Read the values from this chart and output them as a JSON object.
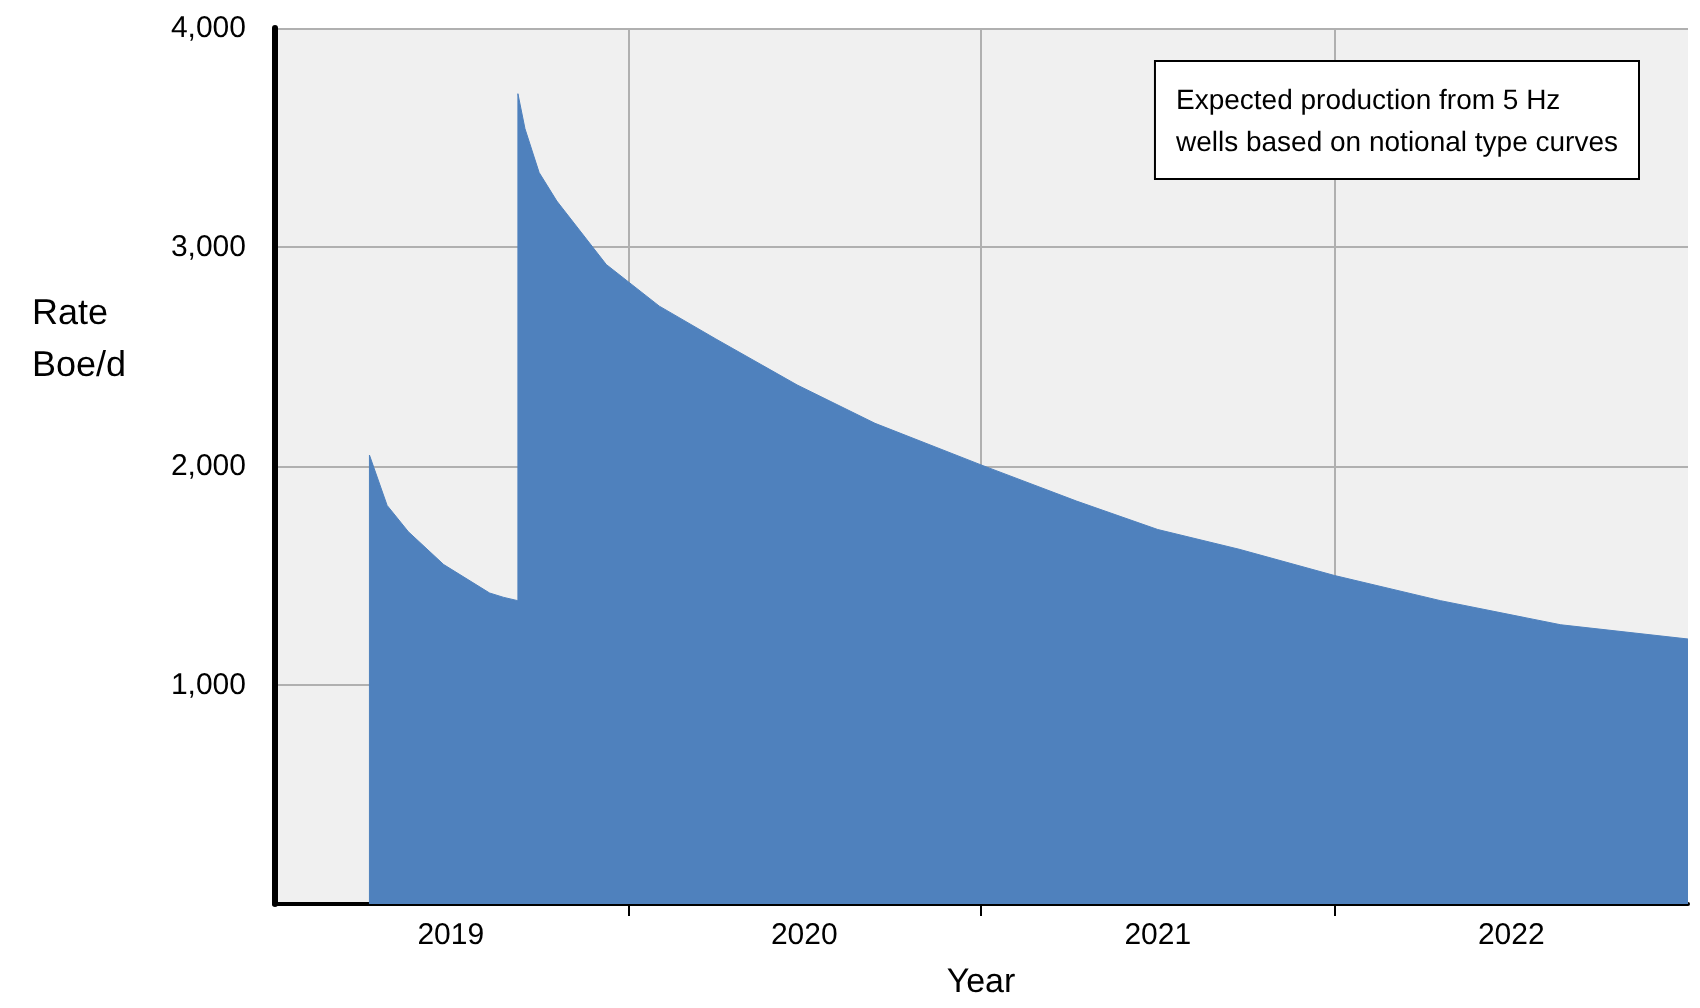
{
  "chart_data": {
    "type": "area",
    "xlabel": "Year",
    "ylabel": "Rate\nBoe/d",
    "annotations": [
      "Expected production from 5 Hz\nwells based on notional type curves"
    ],
    "x": [
      2019.27,
      2019.27,
      2019.32,
      2019.38,
      2019.48,
      2019.61,
      2019.65,
      2019.69,
      2019.69,
      2019.71,
      2019.75,
      2019.8,
      2019.94,
      2020.09,
      2020.25,
      2020.48,
      2020.7,
      2021.0,
      2021.27,
      2021.5,
      2021.73,
      2022.0,
      2022.3,
      2022.64,
      2023.0
    ],
    "series": [
      {
        "color": "#4f81bd",
        "values": [
          0,
          2050,
          1820,
          1700,
          1550,
          1420,
          1400,
          1385,
          3700,
          3540,
          3340,
          3210,
          2920,
          2730,
          2580,
          2370,
          2195,
          2005,
          1840,
          1710,
          1620,
          1500,
          1385,
          1275,
          1210
        ]
      }
    ],
    "xlim": [
      2019,
      2023
    ],
    "xticks": [
      {
        "value": 2019.5,
        "label": "2019"
      },
      {
        "value": 2020,
        "label": null
      },
      {
        "value": 2020.5,
        "label": "2020"
      },
      {
        "value": 2021,
        "label": null
      },
      {
        "value": 2021.5,
        "label": "2021"
      },
      {
        "value": 2022,
        "label": null
      },
      {
        "value": 2022.5,
        "label": "2022"
      }
    ],
    "ylim": [
      0,
      4000
    ],
    "yticks": [
      {
        "value": 1000,
        "label": "1,000"
      },
      {
        "value": 2000,
        "label": "2,000"
      },
      {
        "value": 3000,
        "label": "3,000"
      },
      {
        "value": 4000,
        "label": "4,000"
      }
    ],
    "grid": true,
    "marker": "none"
  }
}
